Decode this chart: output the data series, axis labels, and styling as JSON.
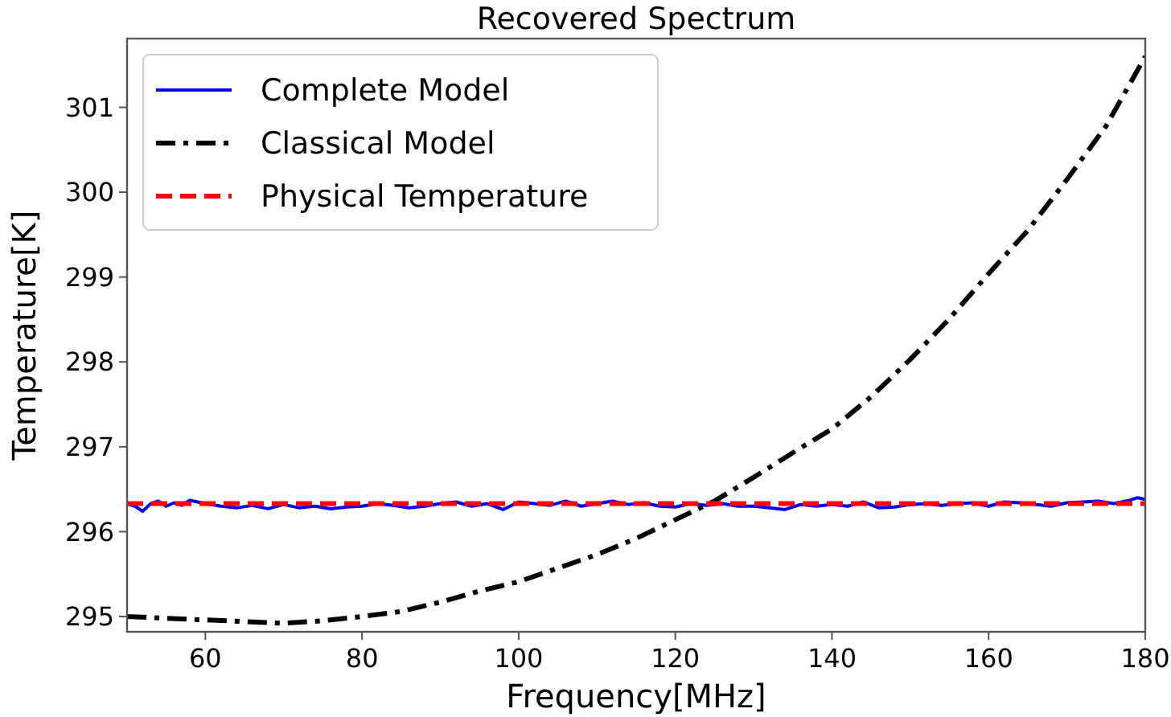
{
  "chart_data": {
    "type": "line",
    "title": "Recovered Spectrum",
    "xlabel": "Frequency[MHz]",
    "ylabel": "Temperature[K]",
    "xlim": [
      50,
      180
    ],
    "ylim": [
      294.82,
      301.81
    ],
    "xticks": [
      60,
      80,
      100,
      120,
      140,
      160,
      180
    ],
    "yticks": [
      295,
      296,
      297,
      298,
      299,
      300,
      301
    ],
    "grid": false,
    "legend": "top left",
    "series": [
      {
        "name": "Complete Model",
        "color": "#0000ff",
        "line_style": "solid",
        "x": [
          50,
          51,
          52,
          53,
          54,
          55,
          56,
          57,
          58,
          59,
          60,
          62,
          64,
          66,
          68,
          70,
          72,
          74,
          76,
          78,
          80,
          82,
          84,
          86,
          88,
          90,
          92,
          94,
          96,
          98,
          100,
          102,
          104,
          106,
          108,
          110,
          112,
          114,
          116,
          118,
          120,
          122,
          124,
          126,
          128,
          130,
          132,
          134,
          136,
          138,
          140,
          142,
          144,
          146,
          148,
          150,
          152,
          154,
          156,
          158,
          160,
          162,
          164,
          166,
          168,
          170,
          172,
          174,
          176,
          178,
          179,
          180
        ],
        "values": [
          296.33,
          296.3,
          296.24,
          296.33,
          296.36,
          296.3,
          296.34,
          296.31,
          296.37,
          296.35,
          296.33,
          296.3,
          296.28,
          296.31,
          296.27,
          296.32,
          296.28,
          296.3,
          296.27,
          296.29,
          296.3,
          296.33,
          296.31,
          296.28,
          296.3,
          296.33,
          296.35,
          296.3,
          296.33,
          296.26,
          296.35,
          296.33,
          296.31,
          296.36,
          296.3,
          296.33,
          296.36,
          296.32,
          296.34,
          296.3,
          296.29,
          296.33,
          296.31,
          296.33,
          296.3,
          296.3,
          296.28,
          296.26,
          296.32,
          296.3,
          296.32,
          296.3,
          296.35,
          296.28,
          296.29,
          296.32,
          296.33,
          296.31,
          296.33,
          296.34,
          296.3,
          296.35,
          296.34,
          296.32,
          296.3,
          296.34,
          296.35,
          296.36,
          296.33,
          296.37,
          296.4,
          296.38
        ]
      },
      {
        "name": "Classical Model",
        "color": "#000000",
        "line_style": "dashdot",
        "x": [
          50,
          55,
          60,
          65,
          70,
          75,
          80,
          85,
          90,
          95,
          100,
          105,
          110,
          115,
          120,
          125,
          130,
          135,
          140,
          145,
          150,
          155,
          160,
          165,
          170,
          175,
          180
        ],
        "values": [
          295.0,
          294.98,
          294.96,
          294.94,
          294.92,
          294.95,
          295.0,
          295.06,
          295.17,
          295.3,
          295.41,
          295.57,
          295.73,
          295.92,
          296.14,
          296.36,
          296.64,
          296.93,
          297.21,
          297.59,
          298.03,
          298.51,
          299.04,
          299.55,
          300.15,
          300.78,
          301.6
        ]
      },
      {
        "name": "Physical Temperature",
        "color": "#ff0000",
        "line_style": "dashed",
        "x": [
          50,
          180
        ],
        "values": [
          296.33,
          296.33
        ]
      }
    ]
  }
}
